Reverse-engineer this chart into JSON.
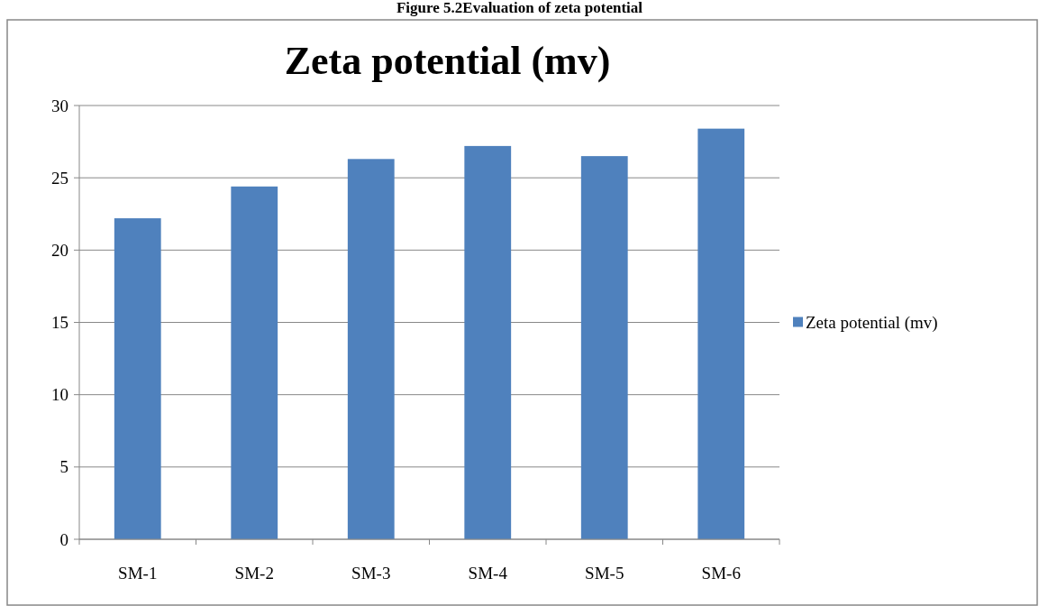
{
  "chart_data": {
    "type": "bar",
    "title": "Zeta potential (mv)",
    "annotations": [
      "Figure 5.2Evaluation of zeta potential"
    ],
    "categories": [
      "SM-1",
      "SM-2",
      "SM-3",
      "SM-4",
      "SM-5",
      "SM-6"
    ],
    "series": [
      {
        "name": "Zeta potential (mv)",
        "color": "#4f81bd",
        "values": [
          22.2,
          24.4,
          26.3,
          27.2,
          26.5,
          28.4
        ]
      }
    ],
    "ylim": [
      0,
      30
    ],
    "yticks": [
      0,
      5,
      10,
      15,
      20,
      25,
      30
    ],
    "grid": "y",
    "legend": "right"
  }
}
